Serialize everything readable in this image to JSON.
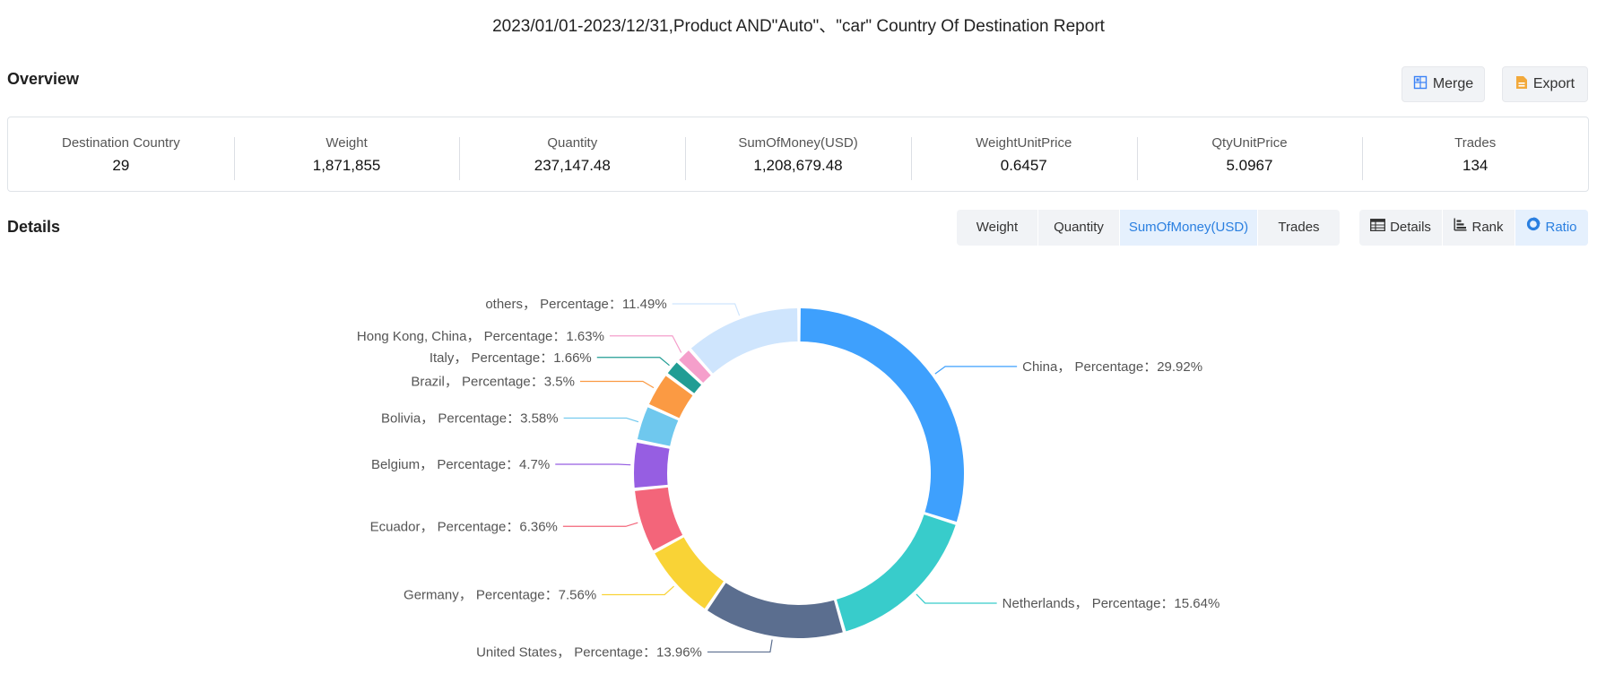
{
  "header": {
    "title": "2023/01/01-2023/12/31,Product AND\"Auto\"、\"car\" Country Of Destination Report"
  },
  "overview": {
    "label": "Overview",
    "merge_label": "Merge",
    "export_label": "Export",
    "stats": [
      {
        "label": "Destination Country",
        "value": "29"
      },
      {
        "label": "Weight",
        "value": "1,871,855"
      },
      {
        "label": "Quantity",
        "value": "237,147.48"
      },
      {
        "label": "SumOfMoney(USD)",
        "value": "1,208,679.48"
      },
      {
        "label": "WeightUnitPrice",
        "value": "0.6457"
      },
      {
        "label": "QtyUnitPrice",
        "value": "5.0967"
      },
      {
        "label": "Trades",
        "value": "134"
      }
    ]
  },
  "details": {
    "label": "Details",
    "metric_tabs": [
      "Weight",
      "Quantity",
      "SumOfMoney(USD)",
      "Trades"
    ],
    "active_metric": "SumOfMoney(USD)",
    "view_tabs": [
      "Details",
      "Rank",
      "Ratio"
    ],
    "active_view": "Ratio"
  },
  "chart_data": {
    "type": "pie",
    "variant": "donut",
    "metric": "SumOfMoney(USD)",
    "label_format": "{name}， Percentage：{value}%",
    "slices": [
      {
        "name": "China",
        "value": 29.92,
        "color": "#3ea0fd"
      },
      {
        "name": "Netherlands",
        "value": 15.64,
        "color": "#38cccb"
      },
      {
        "name": "United States",
        "value": 13.96,
        "color": "#5b6e8f"
      },
      {
        "name": "Germany",
        "value": 7.56,
        "color": "#f9d336"
      },
      {
        "name": "Ecuador",
        "value": 6.36,
        "color": "#f3657a"
      },
      {
        "name": "Belgium",
        "value": 4.7,
        "color": "#965ee2"
      },
      {
        "name": "Bolivia",
        "value": 3.58,
        "color": "#6fc8ee"
      },
      {
        "name": "Brazil",
        "value": 3.5,
        "color": "#fb9a43"
      },
      {
        "name": "Italy",
        "value": 1.66,
        "color": "#219d94"
      },
      {
        "name": "Hong Kong, China",
        "value": 1.63,
        "color": "#f59fcb"
      },
      {
        "name": "others",
        "value": 11.49,
        "color": "#cfe5fd"
      }
    ]
  }
}
